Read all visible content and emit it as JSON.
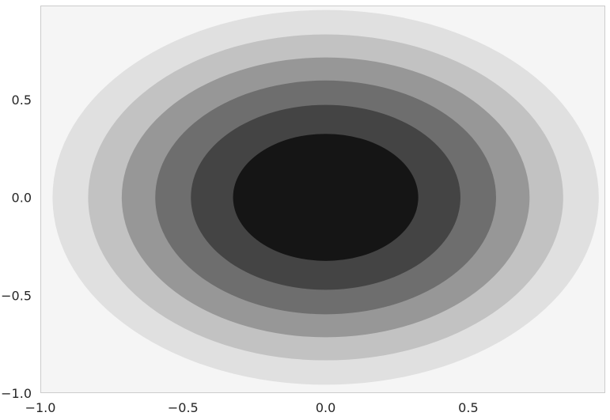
{
  "chart_data": {
    "type": "contourf",
    "title": "",
    "xlabel": "",
    "ylabel": "",
    "xlim": [
      -1.0,
      0.98
    ],
    "ylim": [
      -1.0,
      0.98
    ],
    "grid": false,
    "function": "exp(-(x^2 + y^2))",
    "levels": [
      0.3,
      0.4,
      0.5,
      0.6,
      0.7,
      0.8,
      0.9,
      1.0
    ],
    "level_colors": [
      "#f5f5f5",
      "#e0e0e0",
      "#c2c2c2",
      "#979797",
      "#6e6e6e",
      "#444444",
      "#151515"
    ],
    "xticks": [
      {
        "value": -1.0,
        "label": "−1.0"
      },
      {
        "value": -0.5,
        "label": "−0.5"
      },
      {
        "value": 0.0,
        "label": "0.0"
      },
      {
        "value": 0.5,
        "label": "0.5"
      }
    ],
    "yticks": [
      {
        "value": -1.0,
        "label": "−1.0"
      },
      {
        "value": -0.5,
        "label": "−0.5"
      },
      {
        "value": 0.0,
        "label": "0.0"
      },
      {
        "value": 0.5,
        "label": "0.5"
      }
    ],
    "frame_color": "#cccccc"
  }
}
